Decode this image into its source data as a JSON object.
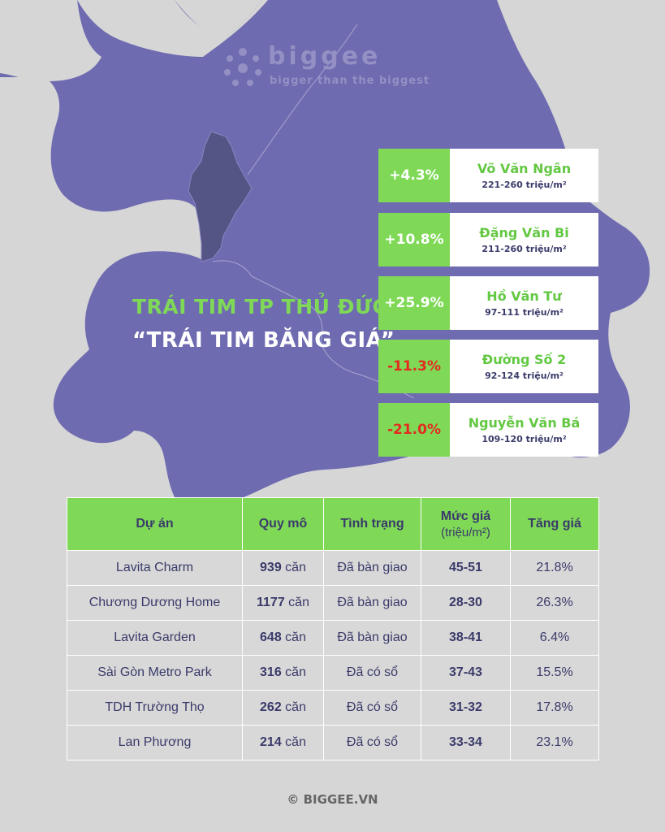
{
  "brand": {
    "name": "biggee",
    "tagline": "bigger than the biggest",
    "logo_color": "#9490c4"
  },
  "colors": {
    "background": "#d6d6d6",
    "map": "#6e6bb0",
    "highlight_district": "#545485",
    "accent_green": "#7fd957",
    "negative_red": "#e32b20"
  },
  "headline": {
    "line1": "TRÁI TIM TP THỦ ĐỨC:",
    "line2": "“TRÁI TIM BĂNG GIÁ”"
  },
  "streets": [
    {
      "change": "+4.3%",
      "name": "Võ Văn Ngân",
      "price": "221-260 triệu/m²",
      "negative": false
    },
    {
      "change": "+10.8%",
      "name": "Đặng Văn Bi",
      "price": "211-260 triệu/m²",
      "negative": false
    },
    {
      "change": "+25.9%",
      "name": "Hồ Văn Tư",
      "price": "97-111  triệu/m²",
      "negative": false
    },
    {
      "change": "-11.3%",
      "name": "Đường Số 2",
      "price": "92-124 triệu/m²",
      "negative": true
    },
    {
      "change": "-21.0%",
      "name": "Nguyễn Văn Bá",
      "price": "109-120 triệu/m²",
      "negative": true
    }
  ],
  "table": {
    "headers": {
      "project": "Dự án",
      "scale": "Quy mô",
      "status": "Tình trạng",
      "price": "Mức giá",
      "price_unit": "(triệu/m²)",
      "growth": "Tăng giá"
    },
    "rows": [
      {
        "project": "Lavita Charm",
        "units": "939",
        "unit_label": " căn",
        "status": "Đã bàn giao",
        "price": "45-51",
        "growth": "21.8%"
      },
      {
        "project": "Chương Dương Home",
        "units": "1177",
        "unit_label": " căn",
        "status": "Đã bàn giao",
        "price": "28-30",
        "growth": "26.3%"
      },
      {
        "project": "Lavita Garden",
        "units": "648",
        "unit_label": " căn",
        "status": "Đã bàn giao",
        "price": "38-41",
        "growth": "6.4%"
      },
      {
        "project": "Sài Gòn Metro Park",
        "units": "316",
        "unit_label": " căn",
        "status": "Đã có sổ",
        "price": "37-43",
        "growth": "15.5%"
      },
      {
        "project": "TDH Trường Thọ",
        "units": "262",
        "unit_label": " căn",
        "status": "Đã có sổ",
        "price": "31-32",
        "growth": "17.8%"
      },
      {
        "project": "Lan Phương",
        "units": "214",
        "unit_label": " căn",
        "status": "Đã có sổ",
        "price": "33-34",
        "growth": "23.1%"
      }
    ]
  },
  "footer": "© BIGGEE.VN"
}
